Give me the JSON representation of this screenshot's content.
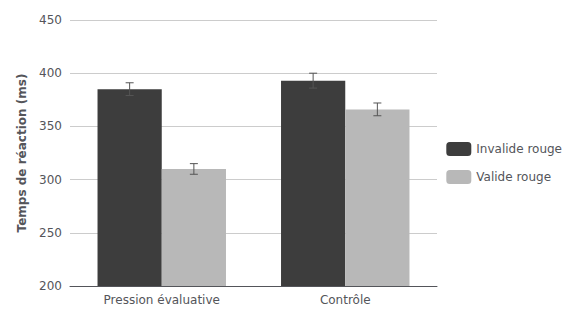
{
  "chart_data": {
    "type": "bar",
    "categories": [
      "Pression évaluative",
      "Contrôle"
    ],
    "series": [
      {
        "name": "Invalide rouge",
        "color": "#3d3d3d",
        "values": [
          385,
          393
        ],
        "errors": [
          6,
          7
        ]
      },
      {
        "name": "Valide rouge",
        "color": "#b8b8b8",
        "values": [
          310,
          366
        ],
        "errors": [
          5,
          6
        ]
      }
    ],
    "ylabel": "Temps de réaction (ms)",
    "ylim": [
      200,
      450
    ],
    "yticks": [
      200,
      250,
      300,
      350,
      400,
      450
    ],
    "grid": true,
    "legend": "right"
  }
}
